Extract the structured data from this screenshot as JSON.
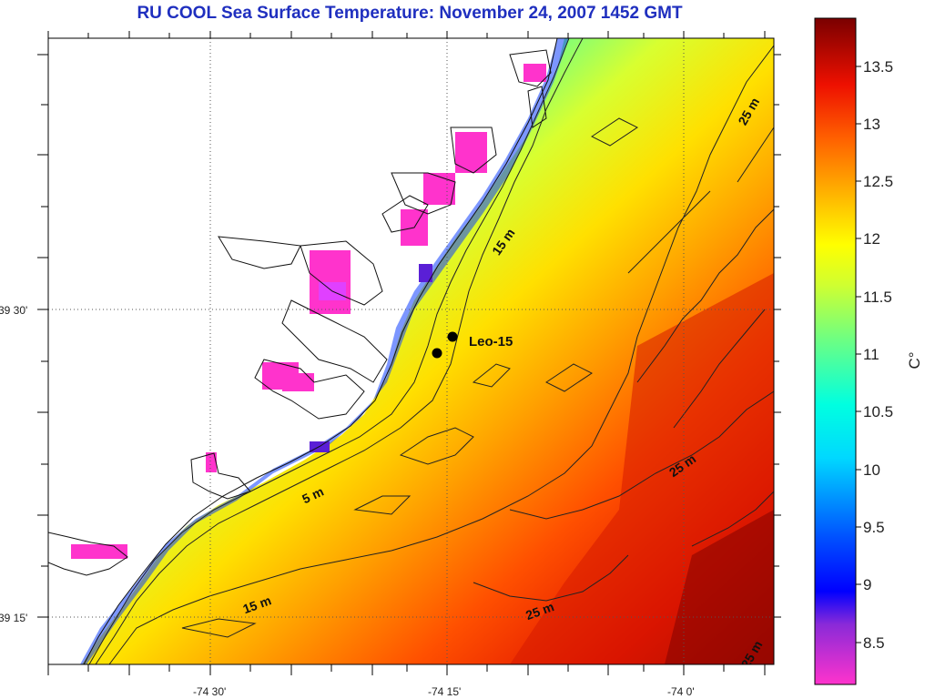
{
  "title": "RU COOL  Sea Surface Temperature:  November 24, 2007 1452 GMT",
  "map": {
    "lon_labels": [
      "-74 30'",
      "-74 15'",
      "-74 0'"
    ],
    "lat_labels": [
      "39 30'",
      "39 15'"
    ],
    "contours": [
      {
        "label": "15 m"
      },
      {
        "label": "5 m"
      },
      {
        "label": "15 m"
      },
      {
        "label": "25 m"
      },
      {
        "label": "25 m"
      },
      {
        "label": "25 m"
      },
      {
        "label": "25 m"
      }
    ],
    "sites": [
      {
        "name": "Leo-15"
      }
    ]
  },
  "colorbar": {
    "unit": "C°",
    "ticks": [
      "13.5",
      "13",
      "12.5",
      "12",
      "11.5",
      "11",
      "10.5",
      "10",
      "9.5",
      "9",
      "8.5"
    ],
    "colors": [
      "#ff33cc",
      "#5a1fd6",
      "#0000ff",
      "#0055ff",
      "#00aaff",
      "#00ffff",
      "#40ffb0",
      "#a0ff50",
      "#ffff00",
      "#ffc000",
      "#ff8000",
      "#ff3000",
      "#e00000",
      "#a00000",
      "#6a0000"
    ]
  }
}
